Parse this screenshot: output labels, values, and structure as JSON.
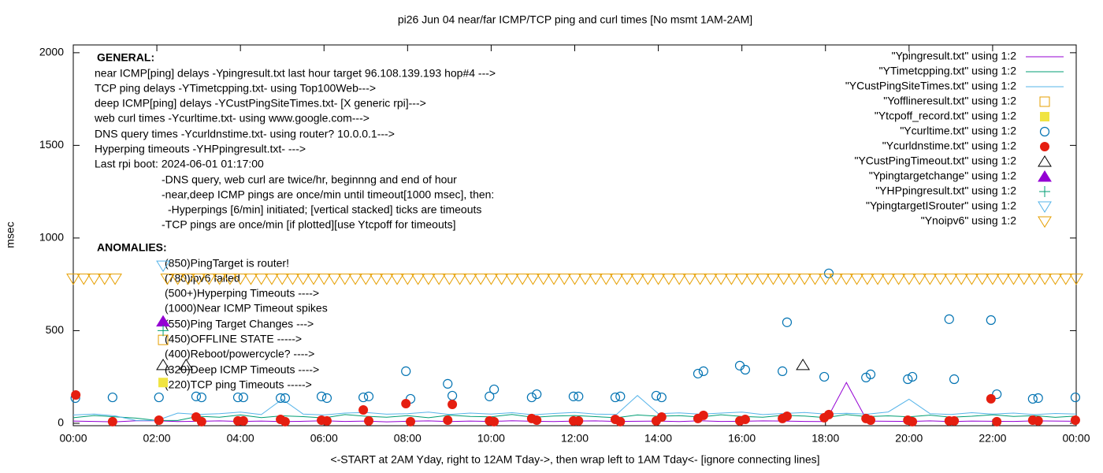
{
  "chart_data": {
    "type": "scatter",
    "title": "pi26 Jun 04  near/far ICMP/TCP ping and curl times [No msmt 1AM-2AM]",
    "x_label": "<-START at 2AM Yday, right to 12AM Tday->, then wrap left to 1AM Tday<- [ignore connecting lines]",
    "y_label": "msec",
    "xlim": [
      0,
      24
    ],
    "ylim": [
      -13,
      2042
    ],
    "xticks": [
      {
        "value": 0,
        "label": "00:00"
      },
      {
        "value": 2,
        "label": "02:00"
      },
      {
        "value": 4,
        "label": "04:00"
      },
      {
        "value": 6,
        "label": "06:00"
      },
      {
        "value": 8,
        "label": "08:00"
      },
      {
        "value": 10,
        "label": "10:00"
      },
      {
        "value": 12,
        "label": "12:00"
      },
      {
        "value": 14,
        "label": "14:00"
      },
      {
        "value": 16,
        "label": "16:00"
      },
      {
        "value": 18,
        "label": "18:00"
      },
      {
        "value": 20,
        "label": "20:00"
      },
      {
        "value": 22,
        "label": "22:00"
      },
      {
        "value": 24,
        "label": "00:00"
      }
    ],
    "yticks": [
      0,
      500,
      1000,
      1500,
      2000
    ],
    "legend": "top-right",
    "annotations": [
      "GENERAL:",
      "near ICMP[ping] delays -Ypingresult.txt last hour target 96.108.139.193 hop#4 --->",
      "TCP ping delays -YTimetcpping.txt- using Top100Web--->",
      "deep ICMP[ping] delays -YCustPingSiteTimes.txt- [X generic rpi]--->",
      "web curl times -Ycurltime.txt- using www.google.com--->",
      "DNS query times -Ycurldnstime.txt- using router? 10.0.0.1--->",
      "Hyperping timeouts -YHPpingresult.txt- --->",
      "Last rpi boot: 2024-06-01 01:17:00",
      "-DNS query, web curl are twice/hr, beginnng and end of hour",
      "-near,deep ICMP pings are once/min until timeout[1000 msec], then:",
      "-Hyperpings [6/min] initiated; [vertical stacked] ticks are timeouts",
      "-TCP pings are once/min [if plotted][use Ytcpoff for timeouts]",
      "ANOMALIES:",
      "(850)PingTarget is router!",
      "(780)ipv6 failed",
      "(500+)Hyperping Timeouts ---->",
      "(1000)Near ICMP Timeout spikes",
      "(550)Ping Target Changes --->",
      "(450)OFFLINE STATE ----->",
      "(400)Reboot/powercycle? ---->",
      "(320)Deep ICMP Timeouts ---->",
      "(220)TCP ping Timeouts ----->"
    ],
    "series": [
      {
        "name": "\"Ypingresult.txt\" using 1:2",
        "color": "#9400d3",
        "marker": "line",
        "x": [
          0,
          0.5,
          1,
          1.5,
          2,
          2.5,
          3,
          3.5,
          4,
          4.5,
          5,
          5.5,
          6,
          6.5,
          7,
          7.5,
          8,
          8.5,
          9,
          9.5,
          10,
          10.5,
          11,
          11.5,
          12,
          12.5,
          13,
          13.5,
          14,
          14.5,
          15,
          15.5,
          16,
          16.5,
          17,
          17.5,
          18,
          18.5,
          19,
          19.5,
          20,
          20.5,
          21,
          21.5,
          22,
          22.5,
          23,
          23.5,
          24
        ],
        "values": [
          12,
          10,
          8,
          14,
          14,
          9,
          11,
          13,
          10,
          12,
          9,
          11,
          14,
          10,
          12,
          8,
          11,
          13,
          9,
          12,
          10,
          14,
          11,
          9,
          12,
          13,
          10,
          11,
          12,
          9,
          14,
          10,
          11,
          13,
          12,
          10,
          9,
          220,
          12,
          11,
          10,
          13,
          9,
          12,
          11,
          10,
          13,
          12,
          11
        ]
      },
      {
        "name": "\"YTimetcpping.txt\" using 1:2",
        "color": "#009e73",
        "marker": "line",
        "x": [
          0,
          0.5,
          1,
          1.5,
          2,
          2.5,
          3,
          3.5,
          4,
          4.5,
          5,
          5.5,
          6,
          6.5,
          7,
          7.5,
          8,
          8.5,
          9,
          9.5,
          10,
          10.5,
          11,
          11.5,
          12,
          12.5,
          13,
          13.5,
          14,
          14.5,
          15,
          15.5,
          16,
          16.5,
          17,
          17.5,
          18,
          18.5,
          19,
          19.5,
          20,
          20.5,
          21,
          21.5,
          22,
          22.5,
          23,
          23.5,
          24
        ],
        "values": [
          30,
          42,
          35,
          28,
          15,
          15,
          38,
          33,
          45,
          31,
          40,
          36,
          29,
          47,
          38,
          33,
          41,
          30,
          44,
          37,
          35,
          48,
          32,
          39,
          42,
          36,
          30,
          45,
          38,
          41,
          34,
          46,
          37,
          33,
          43,
          39,
          31,
          47,
          36,
          40,
          35,
          44,
          33,
          38,
          46,
          37,
          41,
          32,
          39
        ]
      },
      {
        "name": "\"YCustPingSiteTimes.txt\" using 1:2",
        "color": "#56b4e9",
        "marker": "line",
        "x": [
          0,
          0.5,
          1,
          1.5,
          2,
          2.5,
          3,
          3.5,
          4,
          4.5,
          5,
          5.5,
          6,
          6.5,
          7,
          7.5,
          8,
          8.5,
          9,
          9.5,
          10,
          10.5,
          11,
          11.5,
          12,
          12.5,
          13,
          13.5,
          14,
          14.5,
          15,
          15.5,
          16,
          16.5,
          17,
          17.5,
          18,
          18.5,
          19,
          19.5,
          20,
          20.5,
          21,
          21.5,
          22,
          22.5,
          23,
          23.5,
          24
        ],
        "values": [
          45,
          50,
          40,
          15,
          15,
          55,
          48,
          52,
          60,
          47,
          130,
          50,
          45,
          55,
          58,
          49,
          52,
          60,
          48,
          55,
          50,
          57,
          46,
          53,
          59,
          50,
          48,
          150,
          52,
          56,
          49,
          55,
          60,
          47,
          53,
          58,
          50,
          54,
          49,
          61,
          130,
          52,
          48,
          57,
          50,
          55,
          47,
          53,
          50
        ]
      },
      {
        "name": "\"Yofflineresult.txt\" using 1:2",
        "color": "#e69f00",
        "marker": "square-open",
        "x": [
          2.15
        ],
        "values": [
          450
        ]
      },
      {
        "name": "\"Ytcpoff_record.txt\" using 1:2",
        "color": "#f0e442",
        "marker": "square-filled",
        "x": [
          2.15
        ],
        "values": [
          220
        ]
      },
      {
        "name": "\"Ycurltime.txt\" using 1:2",
        "color": "#0072b2",
        "marker": "circle-open",
        "x": [
          0.05,
          0.94,
          2.05,
          2.94,
          3.07,
          3.94,
          4.07,
          4.96,
          5.07,
          5.94,
          6.07,
          6.94,
          7.07,
          7.96,
          8.07,
          8.96,
          9.07,
          9.96,
          10.07,
          10.97,
          11.09,
          11.97,
          12.09,
          12.97,
          13.09,
          13.95,
          14.08,
          14.95,
          15.08,
          15.95,
          16.08,
          16.97,
          17.08,
          17.97,
          18.08,
          18.97,
          19.08,
          19.97,
          20.08,
          20.96,
          21.08,
          21.96,
          22.1,
          22.96,
          23.09,
          23.98
        ],
        "values": [
          136,
          140,
          140,
          145,
          140,
          140,
          140,
          136,
          136,
          145,
          136,
          140,
          145,
          281,
          132,
          213,
          149,
          145,
          183,
          140,
          157,
          145,
          145,
          140,
          145,
          149,
          140,
          268,
          281,
          311,
          289,
          281,
          545,
          251,
          809,
          247,
          264,
          238,
          251,
          562,
          238,
          557,
          157,
          132,
          136,
          140
        ]
      },
      {
        "name": "\"Ycurldnstime.txt\" using 1:2",
        "color": "#e51e10",
        "marker": "circle-filled",
        "x": [
          0.06,
          0.94,
          2.05,
          2.94,
          3.07,
          3.94,
          4.07,
          4.96,
          5.07,
          5.94,
          6.07,
          6.94,
          7.07,
          7.96,
          8.07,
          8.96,
          9.07,
          9.96,
          10.07,
          10.97,
          11.09,
          11.97,
          12.09,
          12.97,
          13.09,
          13.95,
          14.08,
          14.95,
          15.08,
          15.95,
          16.08,
          16.97,
          17.08,
          17.97,
          18.08,
          18.97,
          19.08,
          19.97,
          20.08,
          20.96,
          21.08,
          21.96,
          22.1,
          22.96,
          23.09,
          23.98
        ],
        "values": [
          153,
          9,
          17,
          34,
          9,
          13,
          13,
          21,
          9,
          17,
          13,
          72,
          13,
          106,
          9,
          17,
          102,
          13,
          9,
          26,
          17,
          13,
          13,
          21,
          9,
          13,
          34,
          26,
          43,
          13,
          21,
          26,
          38,
          30,
          47,
          26,
          17,
          17,
          9,
          13,
          13,
          132,
          9,
          17,
          13,
          17
        ]
      },
      {
        "name": "\"YCustPingTimeout.txt\" using 1:2",
        "color": "#000000",
        "marker": "triangle-up-open",
        "x": [
          2.15,
          2.7,
          17.46
        ],
        "values": [
          315,
          315,
          315
        ]
      },
      {
        "name": "\"Ypingtargetchange\" using 1:2",
        "color": "#9400d3",
        "marker": "triangle-up-filled",
        "x": [
          2.15
        ],
        "values": [
          550
        ]
      },
      {
        "name": "\"YHPpingresult.txt\" using 1:2",
        "color": "#009e73",
        "marker": "plus",
        "x": [
          2.15
        ],
        "values": [
          500
        ]
      },
      {
        "name": "\"YpingtargetISrouter\" using 1:2",
        "color": "#56b4e9",
        "marker": "triangle-down-open",
        "x": [
          2.15
        ],
        "values": [
          850
        ]
      },
      {
        "name": "\"Ynoipv6\" using 1:2",
        "color": "#e69f00",
        "marker": "triangle-down-open",
        "x": [
          0,
          0.25,
          0.5,
          0.75,
          1,
          2.25,
          2.5,
          2.75,
          3,
          3.25,
          3.5,
          3.75,
          4,
          4.25,
          4.5,
          4.75,
          5,
          5.25,
          5.5,
          5.75,
          6,
          6.25,
          6.5,
          6.75,
          7,
          7.25,
          7.5,
          7.75,
          8,
          8.25,
          8.5,
          8.75,
          9,
          9.25,
          9.5,
          9.75,
          10,
          10.25,
          10.5,
          10.75,
          11,
          11.25,
          11.5,
          11.75,
          12,
          12.25,
          12.5,
          12.75,
          13,
          13.25,
          13.5,
          13.75,
          14,
          14.25,
          14.5,
          14.75,
          15,
          15.25,
          15.5,
          15.75,
          16,
          16.25,
          16.5,
          16.75,
          17,
          17.25,
          17.5,
          17.75,
          18,
          18.25,
          18.5,
          18.75,
          19,
          19.25,
          19.5,
          19.75,
          20,
          20.25,
          20.5,
          20.75,
          21,
          21.25,
          21.5,
          21.75,
          22,
          22.25,
          22.5,
          22.75,
          23,
          23.25,
          23.5,
          23.75,
          24
        ],
        "values": [
          780,
          780,
          780,
          780,
          780,
          780,
          780,
          780,
          780,
          780,
          780,
          780,
          780,
          780,
          780,
          780,
          780,
          780,
          780,
          780,
          780,
          780,
          780,
          780,
          780,
          780,
          780,
          780,
          780,
          780,
          780,
          780,
          780,
          780,
          780,
          780,
          780,
          780,
          780,
          780,
          780,
          780,
          780,
          780,
          780,
          780,
          780,
          780,
          780,
          780,
          780,
          780,
          780,
          780,
          780,
          780,
          780,
          780,
          780,
          780,
          780,
          780,
          780,
          780,
          780,
          780,
          780,
          780,
          780,
          780,
          780,
          780,
          780,
          780,
          780,
          780,
          780,
          780,
          780,
          780,
          780,
          780,
          780,
          780,
          780,
          780,
          780,
          780,
          780,
          780,
          780,
          780,
          780
        ]
      }
    ]
  }
}
